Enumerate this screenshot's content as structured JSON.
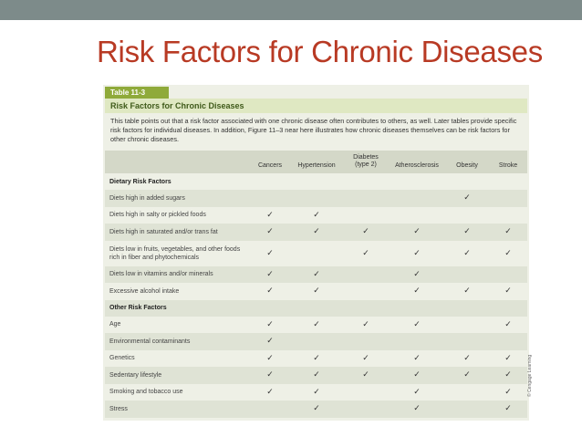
{
  "slide": {
    "title": "Risk Factors for Chronic Diseases"
  },
  "table": {
    "number": "Table 11-3",
    "title": "Risk Factors for Chronic Diseases",
    "description": "This table points out that a risk factor associated with one chronic disease often contributes to others, as well. Later tables provide specific risk factors for individual diseases. In addition, Figure 11–3 near here illustrates how chronic diseases themselves can be risk factors for other chronic diseases.",
    "columns": [
      "Cancers",
      "Hypertension",
      "Diabetes (type 2)",
      "Atherosclerosis",
      "Obesity",
      "Stroke"
    ],
    "rows": [
      {
        "heading": "Dietary Risk Factors"
      },
      {
        "label": "Diets high in added sugars",
        "cells": [
          null,
          null,
          null,
          null,
          "✓",
          null
        ]
      },
      {
        "label": "Diets high in salty or pickled foods",
        "cells": [
          "✓",
          "✓",
          null,
          null,
          null,
          null
        ]
      },
      {
        "label": "Diets high in saturated and/or trans fat",
        "cells": [
          "✓",
          "✓",
          "✓",
          "✓",
          "✓",
          "✓"
        ]
      },
      {
        "label": "Diets low in fruits, vegetables, and other foods rich in fiber and phytochemicals",
        "cells": [
          "✓",
          null,
          "✓",
          "✓",
          "✓",
          "✓"
        ]
      },
      {
        "label": "Diets low in vitamins and/or minerals",
        "cells": [
          "✓",
          "✓",
          null,
          "✓",
          null,
          null
        ]
      },
      {
        "label": "Excessive alcohol intake",
        "cells": [
          "✓",
          "✓",
          null,
          "✓",
          "✓",
          "✓"
        ]
      },
      {
        "heading": "Other Risk Factors"
      },
      {
        "label": "Age",
        "cells": [
          "✓",
          "✓",
          "✓",
          "✓",
          null,
          "✓"
        ]
      },
      {
        "label": "Environmental contaminants",
        "cells": [
          "✓",
          null,
          null,
          null,
          null,
          null
        ]
      },
      {
        "label": "Genetics",
        "cells": [
          "✓",
          "✓",
          "✓",
          "✓",
          "✓",
          "✓"
        ]
      },
      {
        "label": "Sedentary lifestyle",
        "cells": [
          "✓",
          "✓",
          "✓",
          "✓",
          "✓",
          "✓"
        ]
      },
      {
        "label": "Smoking and tobacco use",
        "cells": [
          "✓",
          "✓",
          null,
          "✓",
          null,
          "✓"
        ]
      },
      {
        "label": "Stress",
        "cells": [
          null,
          "✓",
          null,
          "✓",
          null,
          "✓"
        ]
      }
    ],
    "credit": "© Cengage Learning"
  }
}
